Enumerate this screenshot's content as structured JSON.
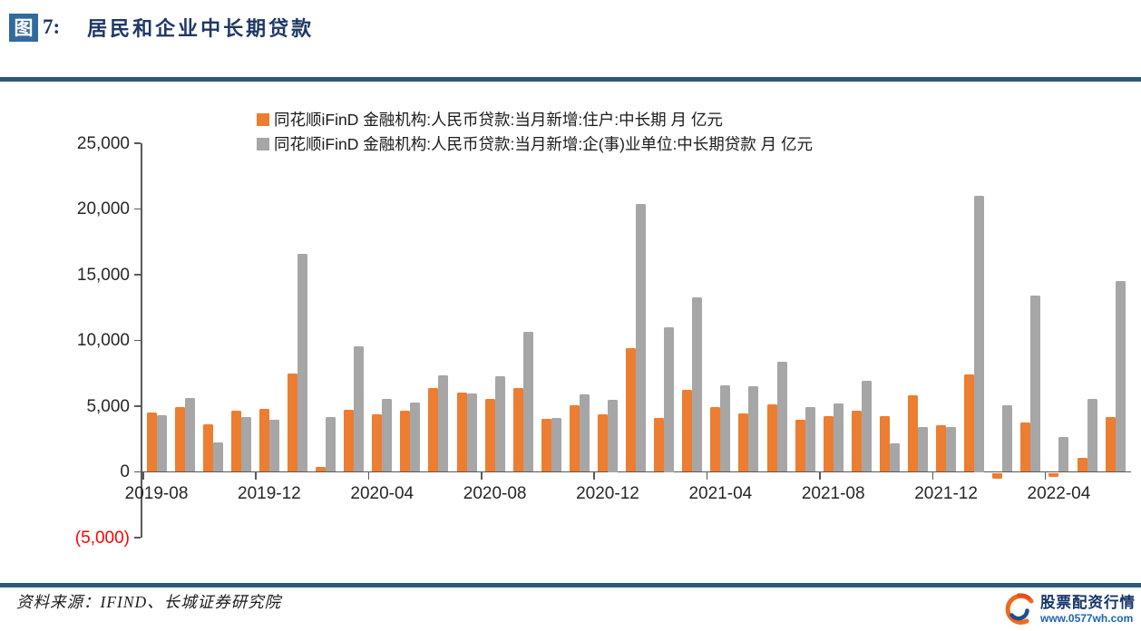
{
  "header": {
    "badge": "图",
    "figure_no": "7:",
    "title": "居民和企业中长期贷款"
  },
  "legend": [
    {
      "label": "同花顺iFinD 金融机构:人民币贷款:当月新增:住户:中长期 月 亿元",
      "color": "#ED7D31"
    },
    {
      "label": "同花顺iFinD 金融机构:人民币贷款:当月新增:企(事)业单位:中长期贷款 月 亿元",
      "color": "#A6A6A6"
    }
  ],
  "chart_data": {
    "type": "bar",
    "title": "居民和企业中长期贷款",
    "unit": "亿元",
    "grid": false,
    "legend_position": "top",
    "ylim": [
      -5000,
      25000
    ],
    "ytick_interval": 5000,
    "ytick_labels": [
      "25,000",
      "20,000",
      "15,000",
      "10,000",
      "5,000",
      "0",
      "(5,000)"
    ],
    "xtick_labels": [
      "2019-08",
      "2019-12",
      "2020-04",
      "2020-08",
      "2020-12",
      "2021-04",
      "2021-08",
      "2021-12",
      "2022-04"
    ],
    "categories": [
      "2019-08",
      "2019-09",
      "2019-10",
      "2019-11",
      "2019-12",
      "2020-01",
      "2020-02",
      "2020-03",
      "2020-04",
      "2020-05",
      "2020-06",
      "2020-07",
      "2020-08",
      "2020-09",
      "2020-10",
      "2020-11",
      "2020-12",
      "2021-01",
      "2021-02",
      "2021-03",
      "2021-04",
      "2021-05",
      "2021-06",
      "2021-07",
      "2021-08",
      "2021-09",
      "2021-10",
      "2021-11",
      "2021-12",
      "2022-01",
      "2022-02",
      "2022-03",
      "2022-04",
      "2022-05",
      "2022-06"
    ],
    "series": [
      {
        "name": "同花顺iFinD 金融机构:人民币贷款:当月新增:住户:中长期 月 亿元",
        "key": "resident",
        "color": "#ED7D31",
        "values": [
          4540,
          4943,
          3587,
          4689,
          4824,
          7491,
          371,
          4738,
          4389,
          4662,
          6349,
          6067,
          5571,
          6362,
          4059,
          5049,
          4392,
          9448,
          4113,
          6239,
          4918,
          4426,
          5156,
          3974,
          4224,
          4667,
          4221,
          5821,
          3558,
          7424,
          -459,
          3735,
          -313,
          1047,
          4167
        ]
      },
      {
        "name": "同花顺iFinD 金融机构:人民币贷款:当月新增:企(事)业单位:中长期贷款 月 亿元",
        "key": "enterprise",
        "color": "#A6A6A6",
        "values": [
          4285,
          5637,
          2216,
          4206,
          3978,
          16600,
          4157,
          9563,
          5547,
          5305,
          7348,
          5968,
          7252,
          10680,
          4113,
          5887,
          5500,
          20400,
          11000,
          13300,
          6605,
          6528,
          8367,
          4937,
          5219,
          6948,
          2190,
          3417,
          3393,
          21000,
          5052,
          13448,
          2652,
          5551,
          14497
        ]
      }
    ],
    "negative_tick_color": "#FF0000"
  },
  "footer": {
    "source": "资料来源：IFIND、长城证券研究院"
  },
  "watermark": {
    "title": "股票配资行情",
    "url": "www.0577wh.com"
  }
}
